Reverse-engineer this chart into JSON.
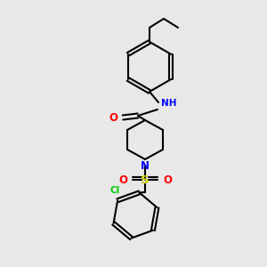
{
  "bg_color": "#e8e8e8",
  "bond_color": "#000000",
  "bond_width": 1.5,
  "atom_colors": {
    "O": "#ff0000",
    "N_amide": "#0000ff",
    "N_pip": "#0000ff",
    "S": "#cccc00",
    "Cl": "#00cc00",
    "H": "#000000"
  },
  "font_size": 7.5
}
